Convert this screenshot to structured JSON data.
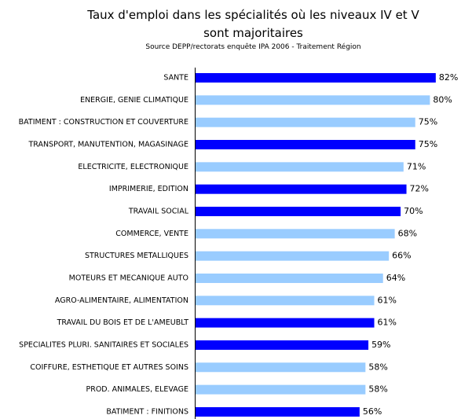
{
  "chart_data": {
    "type": "bar",
    "orientation": "horizontal",
    "title": "Taux d'emploi dans les spécialités où les niveaux IV et V sont majoritaires",
    "subtitle": "Source DEPP/rectorats enquête IPA 2006 - Traitement Région",
    "categories": [
      "SANTE",
      "ENERGIE, GENIE CLIMATIQUE",
      "BATIMENT : CONSTRUCTION ET COUVERTURE",
      "TRANSPORT, MANUTENTION, MAGASINAGE",
      "ELECTRICITE, ELECTRONIQUE",
      "IMPRIMERIE, EDITION",
      "TRAVAIL SOCIAL",
      "COMMERCE, VENTE",
      "STRUCTURES METALLIQUES",
      "MOTEURS ET MECANIQUE AUTO",
      "AGRO-ALIMENTAIRE, ALIMENTATION",
      "TRAVAIL DU BOIS ET DE L'AMEUBLT",
      "SPECIALITES PLURI. SANITAIRES ET SOCIALES",
      "COIFFURE, ESTHETIQUE ET AUTRES SOINS",
      "PROD. ANIMALES, ELEVAGE",
      "BATIMENT : FINITIONS"
    ],
    "values": [
      82,
      80,
      75,
      75,
      71,
      72,
      70,
      68,
      66,
      64,
      61,
      61,
      59,
      58,
      58,
      56
    ],
    "value_labels": [
      "82%",
      "80%",
      "75%",
      "75%",
      "71%",
      "72%",
      "70%",
      "68%",
      "66%",
      "64%",
      "61%",
      "61%",
      "59%",
      "58%",
      "58%",
      "56%"
    ],
    "colors": [
      "#0000ff",
      "#99ccff",
      "#99ccff",
      "#0000ff",
      "#99ccff",
      "#0000ff",
      "#0000ff",
      "#99ccff",
      "#99ccff",
      "#99ccff",
      "#99ccff",
      "#0000ff",
      "#0000ff",
      "#99ccff",
      "#99ccff",
      "#0000ff"
    ],
    "xlim": [
      0,
      100
    ]
  }
}
